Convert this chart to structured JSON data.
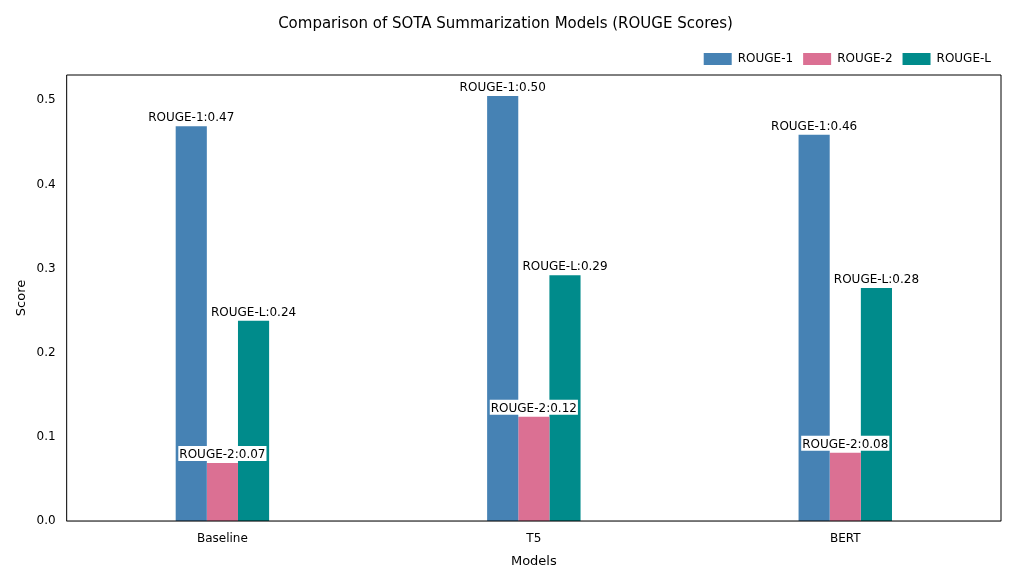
{
  "chart_data": {
    "type": "bar",
    "title": "Comparison of SOTA Summarization Models (ROUGE Scores)",
    "xlabel": "Models",
    "ylabel": "Score",
    "categories": [
      "Baseline",
      "T5",
      "BERT"
    ],
    "series": [
      {
        "name": "ROUGE-1",
        "color": "#4682b4",
        "values": [
          0.469,
          0.505,
          0.459
        ],
        "value_labels": [
          "ROUGE-1:0.47",
          "ROUGE-1:0.50",
          "ROUGE-1:0.46"
        ]
      },
      {
        "name": "ROUGE-2",
        "color": "#db7093",
        "values": [
          0.069,
          0.124,
          0.081
        ],
        "value_labels": [
          "ROUGE-2:0.07",
          "ROUGE-2:0.12",
          "ROUGE-2:0.08"
        ]
      },
      {
        "name": "ROUGE-L",
        "color": "#008b8b",
        "values": [
          0.238,
          0.292,
          0.277
        ],
        "value_labels": [
          "ROUGE-L:0.24",
          "ROUGE-L:0.29",
          "ROUGE-L:0.28"
        ]
      }
    ],
    "ylim": [
      0,
      0.53
    ],
    "yticks": [
      {
        "value": 0,
        "label": "0.0"
      },
      {
        "value": 0.1,
        "label": "0.1"
      },
      {
        "value": 0.2,
        "label": "0.2"
      },
      {
        "value": 0.3,
        "label": "0.3"
      },
      {
        "value": 0.4,
        "label": "0.4"
      },
      {
        "value": 0.5,
        "label": "0.5"
      }
    ],
    "legend": "top right"
  }
}
